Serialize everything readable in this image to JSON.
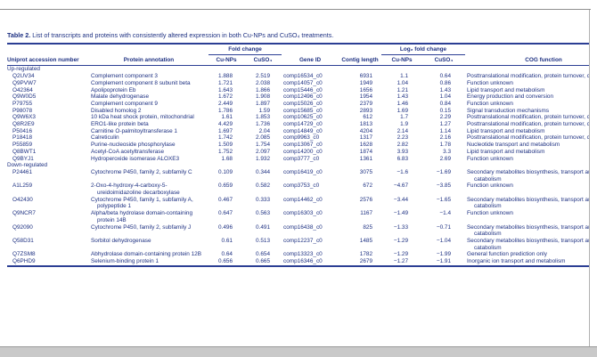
{
  "title": {
    "label": "Table 2.",
    "text": "List of transcripts and proteins with consistently altered expression in both Cu-NPs and CuSO₄ treatments."
  },
  "table": {
    "spanners": {
      "fold_change": "Fold change",
      "log2_fold_change": "Log₂ fold change"
    },
    "columns": {
      "accession": "Uniprot accession number",
      "annotation": "Protein annotation",
      "cunps": "Cu-NPs",
      "cuso4": "CuSO₄",
      "gene_id": "Gene ID",
      "contig_length": "Contig length",
      "cog": "COG function"
    },
    "sections": [
      {
        "label": "Up-regulated",
        "rows": [
          {
            "accession": "Q2UV34",
            "annotation": "Complement component 3",
            "fc_cunps": "1.888",
            "fc_cuso4": "2.519",
            "gene_id": "comp16534_c0",
            "contig_length": "6931",
            "log2_cunps": "1.1",
            "log2_cuso4": "0.64",
            "cog": "Posttranslational modification, protein turnover, chaperones"
          },
          {
            "accession": "Q9PVW7",
            "annotation": "Complement component 8 subunit beta",
            "fc_cunps": "1.721",
            "fc_cuso4": "2.038",
            "gene_id": "comp14057_c0",
            "contig_length": "1949",
            "log2_cunps": "1.04",
            "log2_cuso4": "0.86",
            "cog": "Function unknown"
          },
          {
            "accession": "O42364",
            "annotation": "Apolipoprotein Eb",
            "fc_cunps": "1.643",
            "fc_cuso4": "1.866",
            "gene_id": "comp15446_c0",
            "contig_length": "1656",
            "log2_cunps": "1.21",
            "log2_cuso4": "1.43",
            "cog": "Lipid transport and metabolism"
          },
          {
            "accession": "Q9W0D5",
            "annotation": "Malate dehydrogenase",
            "fc_cunps": "1.672",
            "fc_cuso4": "1.908",
            "gene_id": "comp12496_c0",
            "contig_length": "1954",
            "log2_cunps": "1.43",
            "log2_cuso4": "1.04",
            "cog": "Energy production and conversion"
          },
          {
            "accession": "P79755",
            "annotation": "Complement component 9",
            "fc_cunps": "2.449",
            "fc_cuso4": "1.897",
            "gene_id": "comp15026_c0",
            "contig_length": "2379",
            "log2_cunps": "1.46",
            "log2_cuso4": "0.84",
            "cog": "Function unknown"
          },
          {
            "accession": "P98078",
            "annotation": "Disabled homolog 2",
            "fc_cunps": "1.786",
            "fc_cuso4": "1.59",
            "gene_id": "comp15685_c0",
            "contig_length": "2893",
            "log2_cunps": "1.69",
            "log2_cuso4": "0.15",
            "cog": "Signal transduction mechanisms"
          },
          {
            "accession": "Q9W6X3",
            "annotation": "10 kDa heat shock protein, mitochondrial",
            "fc_cunps": "1.61",
            "fc_cuso4": "1.853",
            "gene_id": "comp10625_c0",
            "contig_length": "612",
            "log2_cunps": "1.7",
            "log2_cuso4": "2.29",
            "cog": "Posttranslational modification, protein turnover, chaperones"
          },
          {
            "accession": "Q8R2E9",
            "annotation": "ERO1-like protein beta",
            "fc_cunps": "4.429",
            "fc_cuso4": "1.736",
            "gene_id": "comp14729_c0",
            "contig_length": "1813",
            "log2_cunps": "1.9",
            "log2_cuso4": "1.27",
            "cog": "Posttranslational modification, protein turnover, chaperones"
          },
          {
            "accession": "P50416",
            "annotation": "Carnitine O-palmitoyltransferase 1",
            "fc_cunps": "1.697",
            "fc_cuso4": "2.04",
            "gene_id": "comp14849_c0",
            "contig_length": "4204",
            "log2_cunps": "2.14",
            "log2_cuso4": "1.14",
            "cog": "Lipid transport and metabolism"
          },
          {
            "accession": "P18418",
            "annotation": "Calreticulin",
            "fc_cunps": "1.742",
            "fc_cuso4": "2.085",
            "gene_id": "comp9963_c0",
            "contig_length": "1317",
            "log2_cunps": "2.23",
            "log2_cuso4": "2.16",
            "cog": "Posttranslational modification, protein turnover, chaperones"
          },
          {
            "accession": "P55859",
            "annotation": "Purine-nucleoside phosphorylase",
            "fc_cunps": "1.509",
            "fc_cuso4": "1.754",
            "gene_id": "comp13067_c0",
            "contig_length": "1628",
            "log2_cunps": "2.82",
            "log2_cuso4": "1.78",
            "cog": "Nucleotide transport and metabolism"
          },
          {
            "accession": "Q8BWT1",
            "annotation": "Acetyl-CoA acetyltransferase",
            "fc_cunps": "1.752",
            "fc_cuso4": "2.097",
            "gene_id": "comp14200_c0",
            "contig_length": "1874",
            "log2_cunps": "3.93",
            "log2_cuso4": "3.3",
            "cog": "Lipid transport and metabolism"
          },
          {
            "accession": "Q9BYJ1",
            "annotation": "Hydroperoxide isomerase ALOXE3",
            "fc_cunps": "1.68",
            "fc_cuso4": "1.932",
            "gene_id": "comp3777_c0",
            "contig_length": "1361",
            "log2_cunps": "6.83",
            "log2_cuso4": "2.69",
            "cog": "Function unknown"
          }
        ]
      },
      {
        "label": "Down-regulated",
        "rows": [
          {
            "accession": "P24461",
            "annotation": "Cytochrome P450, family 2, subfamily C",
            "fc_cunps": "0.109",
            "fc_cuso4": "0.344",
            "gene_id": "comp16419_c0",
            "contig_length": "3075",
            "log2_cunps": "−1.6",
            "log2_cuso4": "−1.69",
            "cog": "Secondary metabolites biosynthesis, transport and catabolism"
          },
          {
            "accession": "A1L259",
            "annotation": "2-Oxo-4-hydroxy-4-carboxy-5-ureidoimidazoline decarboxylase",
            "fc_cunps": "0.659",
            "fc_cuso4": "0.582",
            "gene_id": "comp3753_c0",
            "contig_length": "672",
            "log2_cunps": "−4.67",
            "log2_cuso4": "−3.85",
            "cog": "Function unknown"
          },
          {
            "accession": "O42430",
            "annotation": "Cytochrome P450, family 1, subfamily A, polypeptide 1",
            "fc_cunps": "0.467",
            "fc_cuso4": "0.333",
            "gene_id": "comp14462_c0",
            "contig_length": "2576",
            "log2_cunps": "−3.44",
            "log2_cuso4": "−1.65",
            "cog": "Secondary metabolites biosynthesis, transport and catabolism"
          },
          {
            "accession": "Q9NCR7",
            "annotation": "Alpha/beta hydrolase domain-containing protein 14B",
            "fc_cunps": "0.647",
            "fc_cuso4": "0.563",
            "gene_id": "comp16303_c0",
            "contig_length": "1167",
            "log2_cunps": "−1.49",
            "log2_cuso4": "−1.4",
            "cog": "Function unknown"
          },
          {
            "accession": "Q92090",
            "annotation": "Cytochrome P450, family 2, subfamily J",
            "fc_cunps": "0.496",
            "fc_cuso4": "0.491",
            "gene_id": "comp16438_c0",
            "contig_length": "825",
            "log2_cunps": "−1.33",
            "log2_cuso4": "−0.71",
            "cog": "Secondary metabolites biosynthesis, transport and catabolism"
          },
          {
            "accession": "Q58D31",
            "annotation": "Sorbitol dehydrogenase",
            "fc_cunps": "0.61",
            "fc_cuso4": "0.513",
            "gene_id": "comp12237_c0",
            "contig_length": "1485",
            "log2_cunps": "−1.29",
            "log2_cuso4": "−1.04",
            "cog": "Secondary metabolites biosynthesis, transport and catabolism"
          },
          {
            "accession": "Q7ZSM8",
            "annotation": "Abhydrolase domain-containing protein 12B",
            "fc_cunps": "0.64",
            "fc_cuso4": "0.654",
            "gene_id": "comp13323_c0",
            "contig_length": "1782",
            "log2_cunps": "−1.29",
            "log2_cuso4": "−1.99",
            "cog": "General function prediction only"
          },
          {
            "accession": "Q6PHD9",
            "annotation": "Selenium-binding protein 1",
            "fc_cunps": "0.656",
            "fc_cuso4": "0.665",
            "gene_id": "comp16346_c0",
            "contig_length": "2679",
            "log2_cunps": "−1.27",
            "log2_cuso4": "−1.91",
            "cog": "Inorganic ion transport and metabolism"
          }
        ]
      }
    ]
  }
}
